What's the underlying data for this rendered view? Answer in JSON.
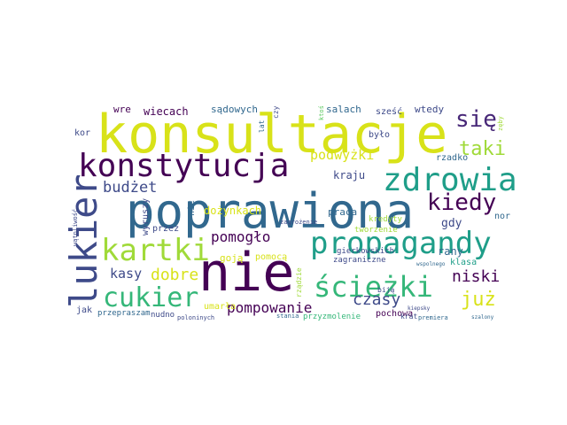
{
  "palette": {
    "yellow": "#d8e219",
    "lime": "#a0da39",
    "green": "#5ec962",
    "teal_green": "#35b779",
    "teal": "#1f9e89",
    "blue_teal": "#26828e",
    "steel": "#31688e",
    "indigo": "#3e4a89",
    "violet": "#482878",
    "deep_purple": "#440154"
  },
  "words": {
    "konsultacje": "konsultacje",
    "poprawiona": "poprawiona",
    "nie": "nie",
    "konstytucja": "konstytucja",
    "zdrowia": "zdrowia",
    "propagandy": "propagandy",
    "lukier": "lukier",
    "kartki": "kartki",
    "cukier": "cukier",
    "sciezki": "ścieżki",
    "sie": "się",
    "kiedy": "kiedy",
    "taki": "taki",
    "juz": "już",
    "niski": "niski",
    "budzet": "budżet",
    "pomoglo": "pomogło",
    "podwyzki": "podwyżki",
    "czasy": "czasy",
    "pompowanie": "pompowanie",
    "dobre": "dobre",
    "kasy": "kasy",
    "wiecach": "wiecach",
    "sadowych": "sądowych",
    "salach": "salach",
    "szesc": "sześć",
    "wtedy": "wtedy",
    "wre": "wre",
    "kor": "kor",
    "bylo": "było",
    "rzadko": "rzadko",
    "dozynkach": "dożynkach",
    "kraju": "kraju",
    "praca": "praca",
    "gdy": "gdy",
    "nor": "nor",
    "rany": "rany",
    "klasa": "klasa",
    "goja": "goją",
    "pomoca": "pomocą",
    "przez": "przez",
    "wyruszy": "wyruszy",
    "nic": "nic",
    "gierkowskich": "gierkowskich",
    "zagraniczne": "zagraniczne",
    "kredyty": "kredyty",
    "umarla": "umarła",
    "jak": "jak",
    "przepraszam": "przepraszam",
    "nudno": "nudno",
    "pochowa": "pochowa",
    "krat": "krat",
    "przyzmolenie": "przyzmolenie",
    "bija": "biją",
    "watpliwosc": "wątpliwość",
    "lat": "lat",
    "czy": "czy",
    "ktos": "ktoś",
    "rzadzie": "rządzie",
    "tworzenie": "tworzenie",
    "zagrozenie": "zagrożenie",
    "stania": "stania",
    "premiera": "premiera",
    "kiepsky": "kiepsky",
    "poloninych": "poloninych",
    "szalony": "szalony",
    "zebys": "zęby",
    "wspolnego": "wspolnego"
  }
}
